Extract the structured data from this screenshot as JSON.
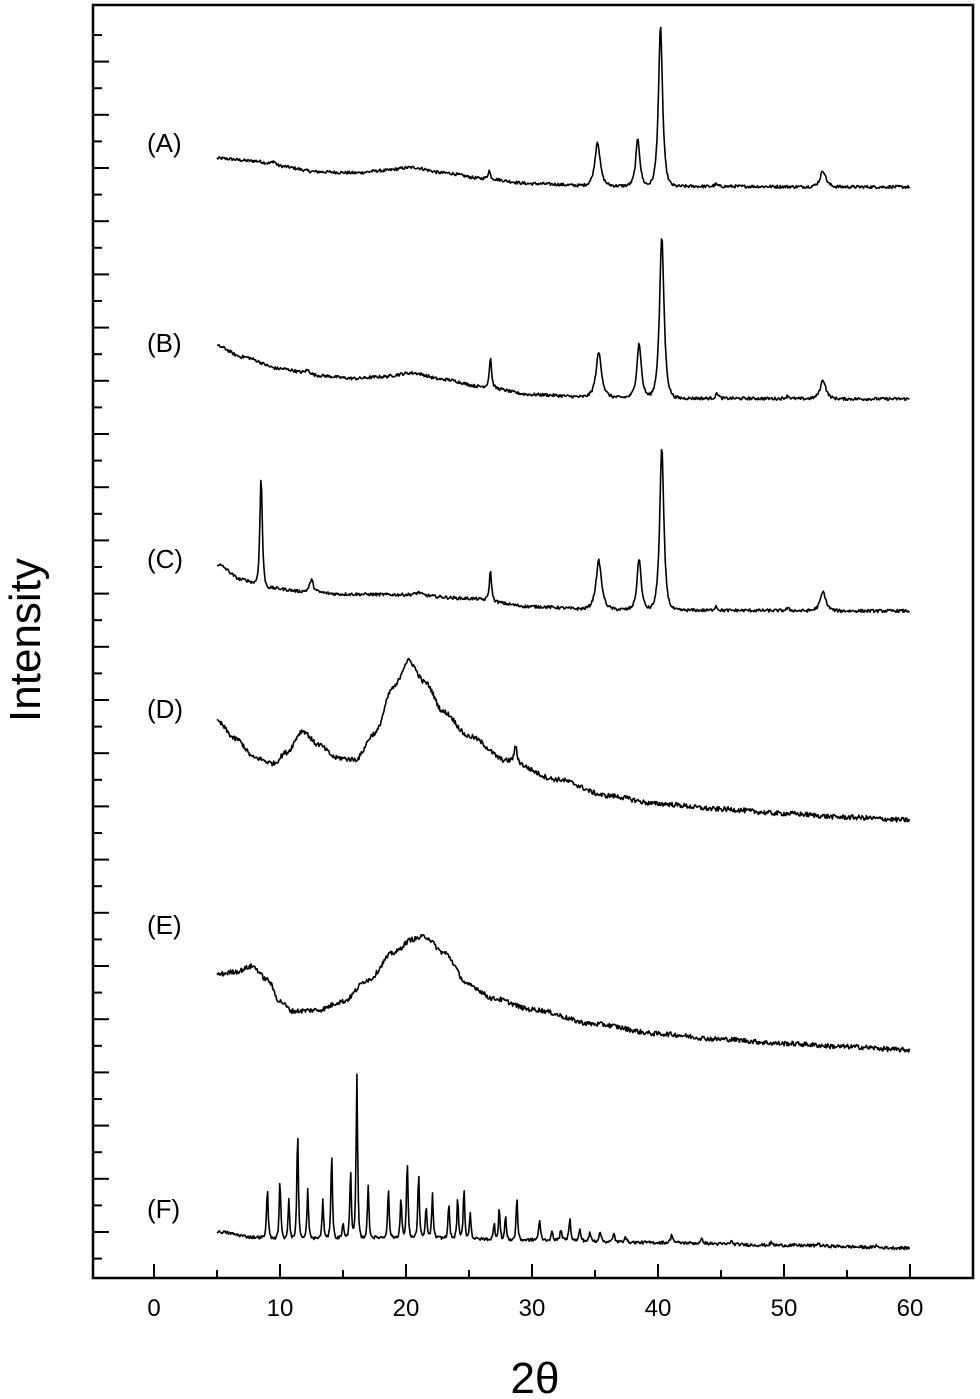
{
  "chart_data": {
    "type": "line",
    "title": "",
    "xlabel": "2θ",
    "ylabel": "Intensity",
    "xlim": [
      -5,
      65
    ],
    "x_ticks": [
      0,
      10,
      20,
      30,
      40,
      50,
      60
    ],
    "y_tick_labels_shown": false,
    "grid": false,
    "legend": "none",
    "line_color": "#000000",
    "series": [
      {
        "name": "(A)",
        "baseline": [
          [
            5,
            0.55
          ],
          [
            8,
            0.5
          ],
          [
            10,
            0.4
          ],
          [
            13,
            0.3
          ],
          [
            16,
            0.28
          ],
          [
            18,
            0.32
          ],
          [
            20.5,
            0.38
          ],
          [
            23,
            0.28
          ],
          [
            26,
            0.18
          ],
          [
            30,
            0.08
          ],
          [
            35,
            0.04
          ],
          [
            45,
            0.03
          ],
          [
            55,
            0.02
          ],
          [
            60,
            0.02
          ]
        ],
        "peaks": [
          [
            9.5,
            0.08,
            0.25
          ],
          [
            26.6,
            0.15,
            0.12
          ],
          [
            35.2,
            0.82,
            0.28
          ],
          [
            38.4,
            0.88,
            0.22
          ],
          [
            40.2,
            2.95,
            0.22
          ],
          [
            44.6,
            0.04,
            0.15
          ],
          [
            53.1,
            0.3,
            0.3
          ]
        ]
      },
      {
        "name": "(B)",
        "baseline": [
          [
            5,
            1.0
          ],
          [
            7,
            0.8
          ],
          [
            10,
            0.58
          ],
          [
            13,
            0.45
          ],
          [
            16,
            0.4
          ],
          [
            18,
            0.43
          ],
          [
            20.5,
            0.5
          ],
          [
            23,
            0.38
          ],
          [
            26,
            0.25
          ],
          [
            30,
            0.1
          ],
          [
            35,
            0.05
          ],
          [
            45,
            0.03
          ],
          [
            55,
            0.02
          ],
          [
            60,
            0.02
          ]
        ],
        "peaks": [
          [
            12.2,
            0.08,
            0.3
          ],
          [
            26.7,
            0.55,
            0.12
          ],
          [
            35.3,
            0.83,
            0.3
          ],
          [
            38.5,
            1.0,
            0.24
          ],
          [
            40.3,
            2.98,
            0.24
          ],
          [
            44.7,
            0.1,
            0.15
          ],
          [
            50.3,
            0.05,
            0.2
          ],
          [
            53.1,
            0.35,
            0.3
          ]
        ]
      },
      {
        "name": "(C)",
        "baseline": [
          [
            5,
            0.88
          ],
          [
            7,
            0.6
          ],
          [
            9,
            0.45
          ],
          [
            12,
            0.38
          ],
          [
            15,
            0.33
          ],
          [
            20,
            0.32
          ],
          [
            25,
            0.25
          ],
          [
            30,
            0.1
          ],
          [
            35,
            0.05
          ],
          [
            45,
            0.03
          ],
          [
            55,
            0.02
          ],
          [
            60,
            0.02
          ]
        ],
        "peaks": [
          [
            8.5,
            2.02,
            0.13
          ],
          [
            12.5,
            0.22,
            0.2
          ],
          [
            21,
            0.05,
            0.3
          ],
          [
            26.7,
            0.55,
            0.12
          ],
          [
            35.3,
            0.9,
            0.3
          ],
          [
            38.5,
            0.95,
            0.22
          ],
          [
            40.3,
            3.0,
            0.22
          ],
          [
            44.6,
            0.08,
            0.15
          ],
          [
            50.3,
            0.04,
            0.2
          ],
          [
            53.1,
            0.35,
            0.3
          ]
        ]
      },
      {
        "name": "(D)",
        "baseline": [
          [
            5,
            1.82
          ],
          [
            6.5,
            1.5
          ],
          [
            8,
            1.15
          ],
          [
            9.5,
            1.05
          ],
          [
            10.5,
            1.25
          ],
          [
            11.8,
            1.65
          ],
          [
            13,
            1.4
          ],
          [
            14.5,
            1.15
          ],
          [
            16,
            1.12
          ],
          [
            17.5,
            1.6
          ],
          [
            19,
            2.45
          ],
          [
            20.2,
            2.95
          ],
          [
            21.5,
            2.55
          ],
          [
            23,
            2.0
          ],
          [
            25,
            1.55
          ],
          [
            28,
            1.1
          ],
          [
            32,
            0.75
          ],
          [
            36,
            0.45
          ],
          [
            40,
            0.3
          ],
          [
            45,
            0.2
          ],
          [
            50,
            0.12
          ],
          [
            55,
            0.05
          ],
          [
            60,
            0.0
          ]
        ],
        "peaks": [
          [
            28.7,
            0.3,
            0.15
          ]
        ]
      },
      {
        "name": "(E)",
        "baseline": [
          [
            5,
            1.4
          ],
          [
            6.5,
            1.45
          ],
          [
            7.8,
            1.55
          ],
          [
            9,
            1.3
          ],
          [
            10,
            0.9
          ],
          [
            11,
            0.72
          ],
          [
            13,
            0.74
          ],
          [
            15,
            0.9
          ],
          [
            17,
            1.3
          ],
          [
            19,
            1.8
          ],
          [
            20.5,
            2.05
          ],
          [
            21.5,
            2.1
          ],
          [
            23,
            1.8
          ],
          [
            25,
            1.2
          ],
          [
            27,
            0.95
          ],
          [
            30,
            0.75
          ],
          [
            35,
            0.48
          ],
          [
            40,
            0.3
          ],
          [
            45,
            0.2
          ],
          [
            50,
            0.12
          ],
          [
            55,
            0.06
          ],
          [
            60,
            0.0
          ]
        ],
        "peaks": []
      },
      {
        "name": "(F)",
        "baseline": [
          [
            5,
            0.3
          ],
          [
            8,
            0.2
          ],
          [
            10,
            0.18
          ],
          [
            20,
            0.2
          ],
          [
            30,
            0.15
          ],
          [
            40,
            0.1
          ],
          [
            50,
            0.05
          ],
          [
            60,
            0.0
          ]
        ],
        "peaks": [
          [
            9,
            0.95,
            0.08
          ],
          [
            10,
            1.1,
            0.08
          ],
          [
            10.7,
            0.75,
            0.08
          ],
          [
            11.4,
            2.0,
            0.08
          ],
          [
            12.2,
            0.9,
            0.08
          ],
          [
            13.4,
            0.7,
            0.08
          ],
          [
            14.1,
            1.6,
            0.08
          ],
          [
            15,
            0.3,
            0.08
          ],
          [
            15.6,
            1.3,
            0.08
          ],
          [
            16.1,
            3.0,
            0.08
          ],
          [
            17,
            0.95,
            0.08
          ],
          [
            18.6,
            0.9,
            0.08
          ],
          [
            19.6,
            0.75,
            0.08
          ],
          [
            20.1,
            1.45,
            0.08
          ],
          [
            21,
            1.2,
            0.08
          ],
          [
            21.6,
            0.6,
            0.08
          ],
          [
            22.1,
            0.8,
            0.08
          ],
          [
            23.4,
            0.65,
            0.08
          ],
          [
            24.1,
            0.75,
            0.08
          ],
          [
            24.6,
            0.95,
            0.08
          ],
          [
            25.1,
            0.5,
            0.08
          ],
          [
            27,
            0.3,
            0.08
          ],
          [
            27.4,
            0.6,
            0.08
          ],
          [
            27.9,
            0.45,
            0.08
          ],
          [
            28.8,
            0.8,
            0.08
          ],
          [
            30.6,
            0.35,
            0.1
          ],
          [
            31.6,
            0.15,
            0.1
          ],
          [
            32.3,
            0.2,
            0.1
          ],
          [
            33,
            0.4,
            0.1
          ],
          [
            33.8,
            0.2,
            0.1
          ],
          [
            34.6,
            0.15,
            0.1
          ],
          [
            35.4,
            0.2,
            0.1
          ],
          [
            36.5,
            0.15,
            0.1
          ],
          [
            37.4,
            0.12,
            0.1
          ],
          [
            41.1,
            0.15,
            0.12
          ],
          [
            43.5,
            0.08,
            0.12
          ],
          [
            45.8,
            0.06,
            0.12
          ],
          [
            49,
            0.05,
            0.12
          ],
          [
            52.7,
            0.05,
            0.12
          ],
          [
            57.3,
            0.04,
            0.12
          ]
        ]
      }
    ]
  }
}
